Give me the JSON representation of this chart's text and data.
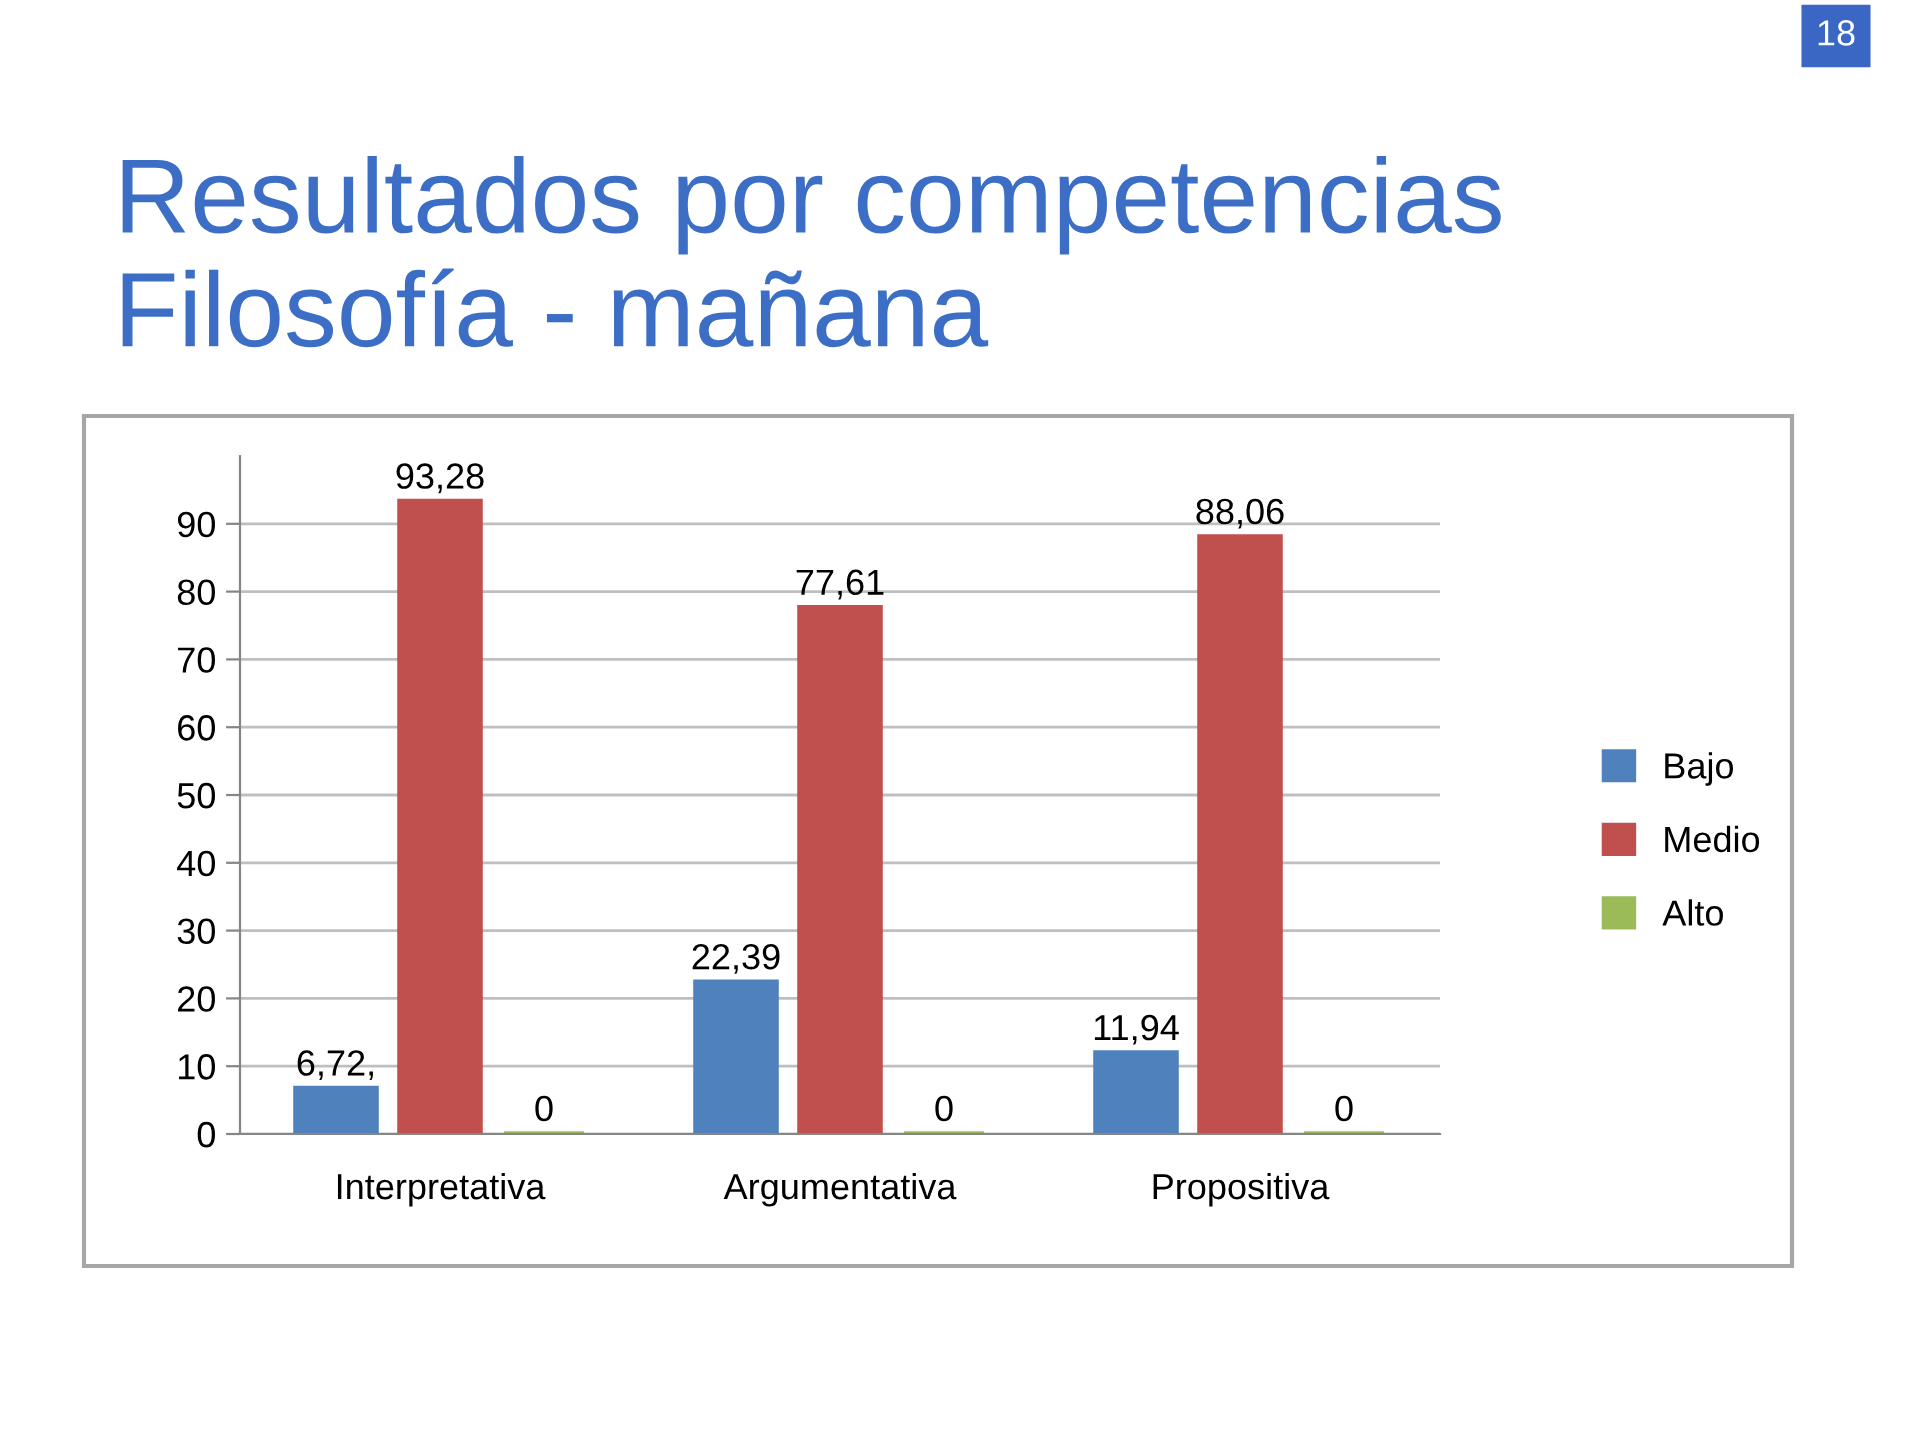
{
  "chart_data": {
    "type": "bar",
    "title": "Resultados por competencias\nFilosofía - mañana",
    "categories": [
      "Interpretativa",
      "Argumentativa",
      "Propositiva"
    ],
    "series": [
      {
        "name": "Bajo",
        "color": "#4f81bd",
        "values": [
          6.72,
          22.39,
          11.94
        ],
        "value_labels": [
          "6,72,",
          "22,39",
          "11,94"
        ]
      },
      {
        "name": "Medio",
        "color": "#c0504d",
        "values": [
          93.28,
          77.61,
          88.06
        ],
        "value_labels": [
          "93,28",
          "77,61",
          "88,06"
        ]
      },
      {
        "name": "Alto",
        "color": "#9bbb59",
        "values": [
          0,
          0,
          0
        ],
        "value_labels": [
          "0",
          "0",
          "0"
        ]
      }
    ],
    "ylim": [
      0,
      100
    ],
    "yticks": [
      0,
      10,
      20,
      30,
      40,
      50,
      60,
      70,
      80,
      90
    ],
    "grid": "y",
    "legend": "right",
    "annotations": [
      "18"
    ]
  }
}
